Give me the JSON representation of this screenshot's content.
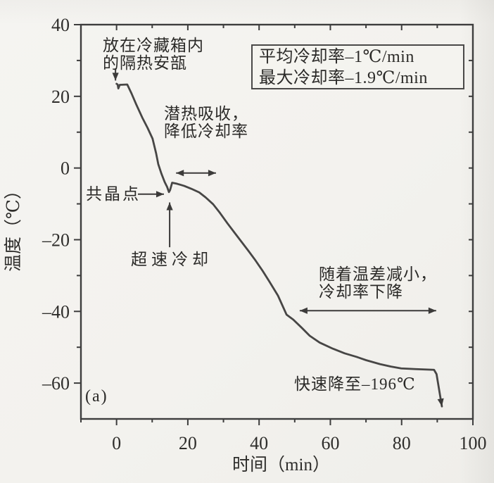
{
  "annotations": {
    "ampoule_line1": "放在冷藏箱内",
    "ampoule_line2": "的隔热安瓿",
    "legend_line1": "平均冷却率–1℃/min",
    "legend_line2": "最大冷却率–1.9℃/min",
    "latent_line1": "潜热吸收，",
    "latent_line2": "降低冷却率",
    "eutectic": "共晶点",
    "supercool": "超速冷却",
    "tempdiff_line1": "随着温差减小，",
    "tempdiff_line2": "冷却率下降",
    "rapid": "快速降至–196℃",
    "panel": "(a)"
  },
  "chart_data": {
    "type": "line",
    "title": "",
    "xlabel": "时间（min）",
    "ylabel": "温度（℃）",
    "xlim": [
      -10,
      100
    ],
    "ylim": [
      -70,
      40
    ],
    "grid": false,
    "x_ticks": [
      0,
      20,
      40,
      60,
      80,
      100
    ],
    "x_tick_labels": [
      "0",
      "20",
      "40",
      "60",
      "80",
      "100"
    ],
    "x_minor_ticks": [
      -10,
      10,
      30,
      50,
      70,
      90
    ],
    "y_ticks": [
      40,
      20,
      0,
      -20,
      -40,
      -60
    ],
    "y_tick_labels": [
      "40",
      "20",
      "0",
      "–20",
      "–40",
      "–60"
    ],
    "y_minor_ticks": [
      30,
      10,
      -10,
      -30,
      -50
    ],
    "top_ticks": [
      0,
      10,
      20,
      30,
      40,
      50,
      60,
      70,
      80,
      90
    ],
    "right_ticks": [
      30,
      20,
      10,
      0,
      -10,
      -20,
      -30,
      -40,
      -50,
      -60
    ],
    "series": [
      {
        "name": "cooling-curve",
        "end_arrow": true,
        "points": [
          [
            0,
            23.5
          ],
          [
            0.3,
            23.3
          ],
          [
            0.5,
            22.2
          ],
          [
            0.9,
            23.2
          ],
          [
            3.0,
            23.3
          ],
          [
            4.2,
            20.8
          ],
          [
            5.5,
            17.8
          ],
          [
            7.2,
            14.1
          ],
          [
            8.7,
            11.2
          ],
          [
            10.1,
            8.2
          ],
          [
            11.1,
            4.1
          ],
          [
            11.7,
            1.1
          ],
          [
            12.6,
            -1.6
          ],
          [
            13.5,
            -3.9
          ],
          [
            14.2,
            -5.3
          ],
          [
            14.7,
            -6.7
          ],
          [
            15.0,
            -6.2
          ],
          [
            15.6,
            -4.1
          ],
          [
            17.0,
            -4.4
          ],
          [
            19.0,
            -5.0
          ],
          [
            21.0,
            -5.8
          ],
          [
            23.2,
            -6.8
          ],
          [
            25.0,
            -8.2
          ],
          [
            27.1,
            -10.1
          ],
          [
            29.0,
            -12.5
          ],
          [
            31.1,
            -15.4
          ],
          [
            33.0,
            -17.9
          ],
          [
            35.0,
            -20.5
          ],
          [
            37.0,
            -23.1
          ],
          [
            39.0,
            -25.8
          ],
          [
            41.0,
            -28.7
          ],
          [
            42.9,
            -31.7
          ],
          [
            45.3,
            -35.6
          ],
          [
            47.7,
            -40.9
          ],
          [
            49.6,
            -42.3
          ],
          [
            52.0,
            -44.6
          ],
          [
            54.2,
            -46.8
          ],
          [
            57.0,
            -48.7
          ],
          [
            60.7,
            -50.4
          ],
          [
            64.0,
            -51.7
          ],
          [
            67.4,
            -52.7
          ],
          [
            70.0,
            -53.6
          ],
          [
            73.9,
            -54.7
          ],
          [
            77.0,
            -55.4
          ],
          [
            79.9,
            -55.9
          ],
          [
            84.0,
            -56.1
          ],
          [
            89.1,
            -56.3
          ],
          [
            89.8,
            -57.5
          ],
          [
            91.3,
            -66.5
          ]
        ]
      }
    ],
    "arrows": [
      {
        "name": "ampoule-pointer-arrow",
        "points": [
          [
            -0.3,
            27.8
          ],
          [
            -0.3,
            24.4
          ]
        ],
        "heads": "end"
      },
      {
        "name": "eutectic-pointer-arrow",
        "points": [
          [
            6.0,
            -7.3
          ],
          [
            13.3,
            -7.3
          ]
        ],
        "heads": "end"
      },
      {
        "name": "supercool-pointer-arrow",
        "points": [
          [
            14.9,
            -22.1
          ],
          [
            14.9,
            -9.6
          ]
        ],
        "heads": "end"
      },
      {
        "name": "latent-span-arrow",
        "points": [
          [
            16.7,
            -1.4
          ],
          [
            27.9,
            -1.4
          ]
        ],
        "heads": "both"
      },
      {
        "name": "tempdiff-span-arrow",
        "points": [
          [
            51.4,
            -39.8
          ],
          [
            89.7,
            -39.8
          ]
        ],
        "heads": "both"
      }
    ]
  }
}
